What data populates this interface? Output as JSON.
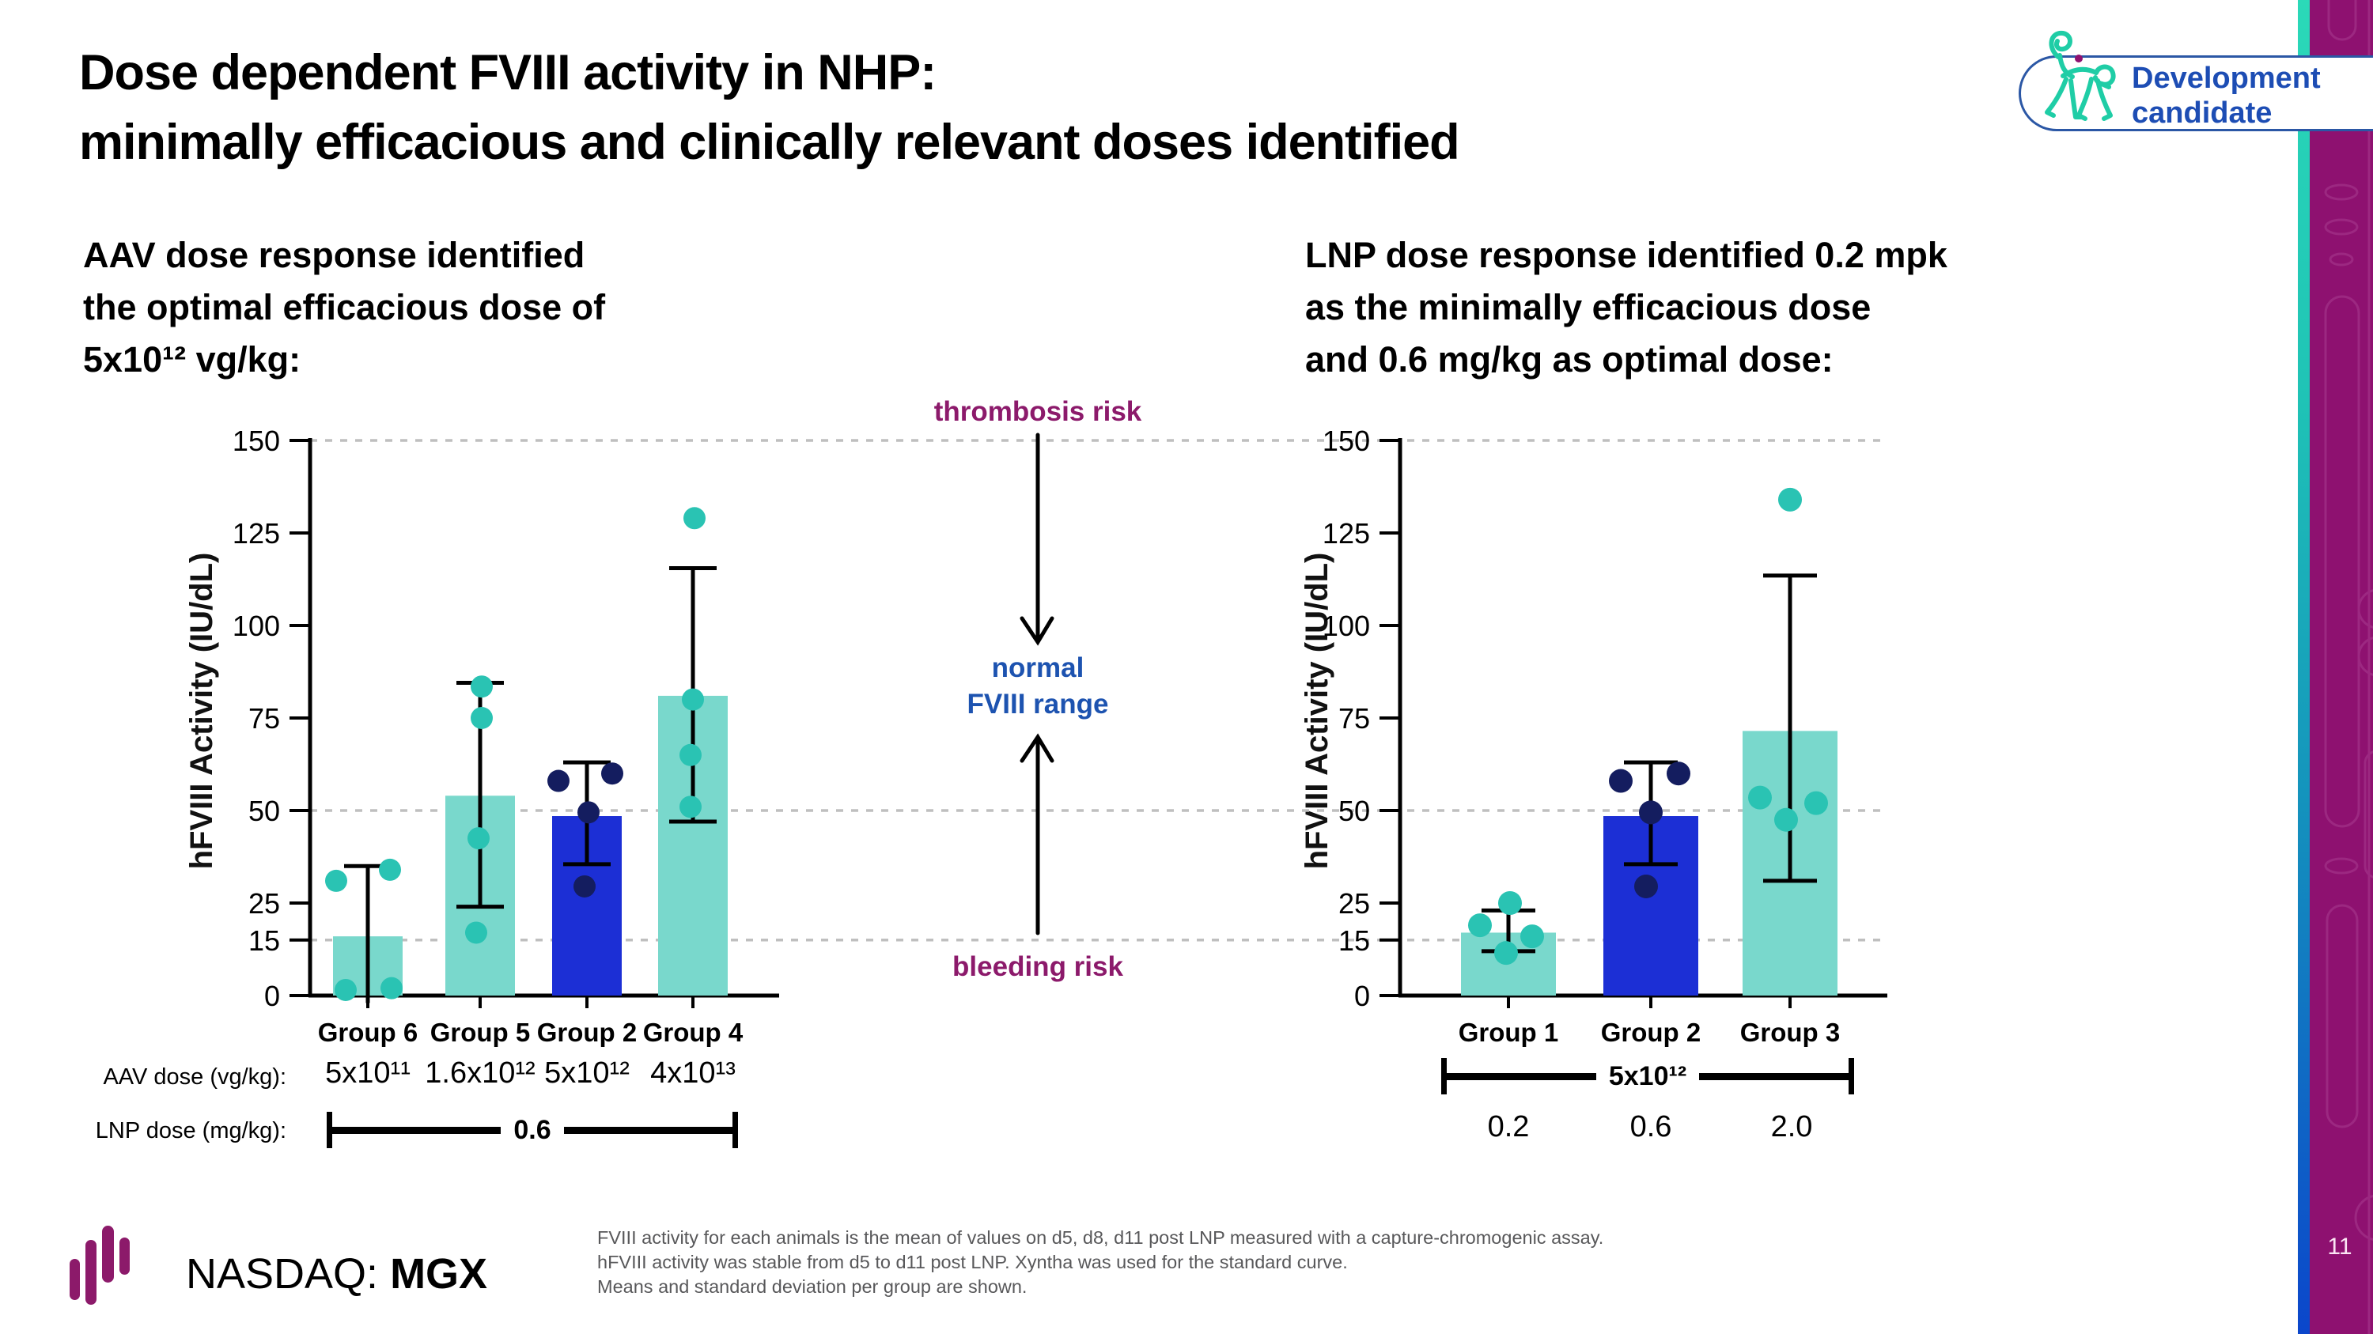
{
  "slide": {
    "title_lines": [
      "Dose dependent FVIII activity in NHP:",
      "minimally efficacious and clinically relevant doses identified"
    ],
    "page_number": "11"
  },
  "badge": {
    "label_lines": [
      "Development",
      "candidate"
    ],
    "icon": "monkey-icon"
  },
  "annotations": {
    "thrombosis": "thrombosis risk",
    "normal_lines": [
      "normal",
      "FVIII range"
    ],
    "bleeding": "bleeding risk"
  },
  "dose_rows": {
    "aav_label": "AAV dose (vg/kg):",
    "lnp_label": "LNP dose (mg/kg):",
    "left_aav_values": [
      "5x10¹¹",
      "1.6x10¹²",
      "5x10¹²",
      "4x10¹³"
    ],
    "left_lnp_bracket_label": "0.6",
    "right_aav_bracket_label": "5x10¹²",
    "right_lnp_values": [
      "0.2",
      "0.6",
      "2.0"
    ]
  },
  "footer": {
    "nasdaq_prefix": "NASDAQ: ",
    "ticker": "MGX",
    "footnote_lines": [
      "FVIII activity for each animals is the mean of values on d5, d8, d11 post LNP measured with a capture-chromogenic assay.",
      "hFVIII activity was stable from d5 to d11 post LNP. Xyntha was used for the standard curve.",
      "Means and standard deviation per group are shown."
    ]
  },
  "colors": {
    "teal_bar": "#79d8cc",
    "teal_dot": "#2ac3b3",
    "blue_bar": "#1c2fd5",
    "navy_dot": "#141d5f",
    "axis": "#000000",
    "gridline": "#bfbfbf",
    "risk_text": "#8c1a6b",
    "normal_text": "#1d53b0",
    "badge_blue": "#1d4db4",
    "badge_border": "#2b57a5",
    "band_magenta": "#8e1170",
    "band_decor": "#aa3f93",
    "logo_magenta": "#8c1a6a",
    "monkey_teal": "#1fcda6"
  },
  "chart_data": [
    {
      "type": "bar",
      "side": "left",
      "heading_lines": [
        "AAV dose response identified",
        "the optimal efficacious dose of",
        "5x10¹² vg/kg:"
      ],
      "ylabel": "hFVIII Activity (IU/dL)",
      "ylim": [
        0,
        150
      ],
      "yticks": [
        0,
        15,
        25,
        50,
        75,
        100,
        125,
        150
      ],
      "gridline_values": [
        15,
        50,
        150
      ],
      "grid_style": "dotted",
      "legend": "none",
      "categories": [
        "Group 6",
        "Group 5",
        "Group 2",
        "Group 4"
      ],
      "bars": [
        {
          "category": "Group 6",
          "mean": 16,
          "sd_low": -2,
          "sd_high": 35,
          "cap_low": false,
          "cap_high": true,
          "color_key": "teal_bar",
          "dot_color_key": "teal_dot",
          "points": [
            {
              "value": 31,
              "dx": -40
            },
            {
              "value": 34,
              "dx": 28
            },
            {
              "value": 1.5,
              "dx": -28
            },
            {
              "value": 2,
              "dx": 30
            }
          ]
        },
        {
          "category": "Group 5",
          "mean": 54,
          "sd_low": 24,
          "sd_high": 84.5,
          "cap_low": true,
          "cap_high": true,
          "color_key": "teal_bar",
          "dot_color_key": "teal_dot",
          "points": [
            {
              "value": 83.5,
              "dx": 2
            },
            {
              "value": 75,
              "dx": 2
            },
            {
              "value": 42.5,
              "dx": -2
            },
            {
              "value": 17,
              "dx": -5
            }
          ]
        },
        {
          "category": "Group 2",
          "mean": 48.5,
          "sd_low": 35.5,
          "sd_high": 63,
          "cap_low": true,
          "cap_high": true,
          "color_key": "blue_bar",
          "dot_color_key": "navy_dot",
          "points": [
            {
              "value": 58,
              "dx": -36
            },
            {
              "value": 60,
              "dx": 32
            },
            {
              "value": 49.5,
              "dx": 2
            },
            {
              "value": 29.5,
              "dx": -3
            }
          ]
        },
        {
          "category": "Group 4",
          "mean": 81,
          "sd_low": 47,
          "sd_high": 115.5,
          "cap_low": true,
          "cap_high": true,
          "color_key": "teal_bar",
          "dot_color_key": "teal_dot",
          "points": [
            {
              "value": 129,
              "dx": 2
            },
            {
              "value": 80,
              "dx": 0
            },
            {
              "value": 65,
              "dx": -3
            },
            {
              "value": 51,
              "dx": -3
            }
          ]
        }
      ]
    },
    {
      "type": "bar",
      "side": "right",
      "heading_lines": [
        "LNP dose response identified 0.2 mpk",
        "as the minimally efficacious dose",
        "and 0.6 mg/kg as optimal dose:"
      ],
      "ylabel": "hFVIII Activity (IU/dL)",
      "ylim": [
        0,
        150
      ],
      "yticks": [
        0,
        15,
        25,
        50,
        75,
        100,
        125,
        150
      ],
      "gridline_values": [
        15,
        50,
        150
      ],
      "grid_style": "dotted",
      "legend": "none",
      "categories": [
        "Group 1",
        "Group 2",
        "Group 3"
      ],
      "bars": [
        {
          "category": "Group 1",
          "mean": 17,
          "sd_low": 12,
          "sd_high": 23,
          "cap_low": true,
          "cap_high": true,
          "color_key": "teal_bar",
          "dot_color_key": "teal_dot",
          "points": [
            {
              "value": 25,
              "dx": 2
            },
            {
              "value": 19,
              "dx": -36
            },
            {
              "value": 16,
              "dx": 30
            },
            {
              "value": 11.5,
              "dx": -3
            }
          ]
        },
        {
          "category": "Group 2",
          "mean": 48.5,
          "sd_low": 35.5,
          "sd_high": 63,
          "cap_low": true,
          "cap_high": true,
          "color_key": "blue_bar",
          "dot_color_key": "navy_dot",
          "points": [
            {
              "value": 58,
              "dx": -38
            },
            {
              "value": 60,
              "dx": 35
            },
            {
              "value": 49.5,
              "dx": 0
            },
            {
              "value": 29.5,
              "dx": -6
            }
          ]
        },
        {
          "category": "Group 3",
          "mean": 71.5,
          "sd_low": 31,
          "sd_high": 113.5,
          "cap_low": true,
          "cap_high": true,
          "color_key": "teal_bar",
          "dot_color_key": "teal_dot",
          "points": [
            {
              "value": 134,
              "dx": 0
            },
            {
              "value": 53.5,
              "dx": -38
            },
            {
              "value": 52,
              "dx": 33
            },
            {
              "value": 47.5,
              "dx": -5
            }
          ]
        }
      ]
    }
  ]
}
